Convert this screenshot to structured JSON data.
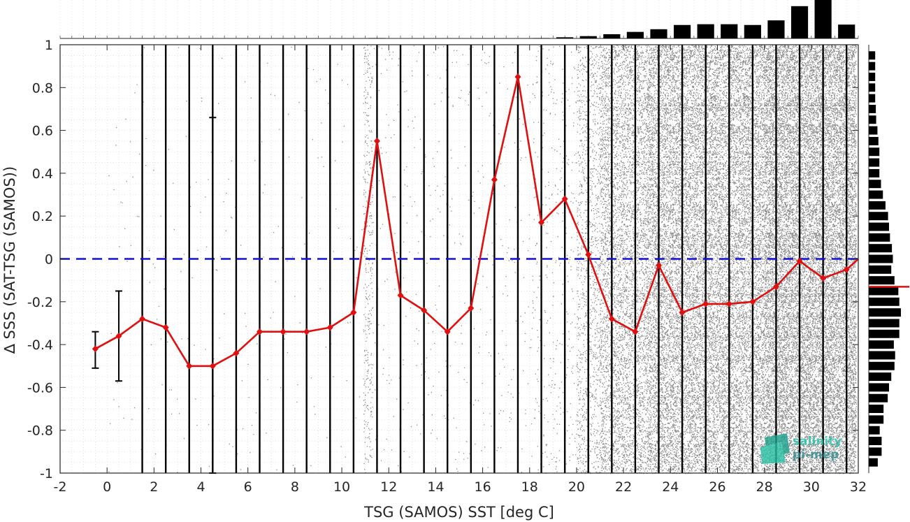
{
  "chart_data": {
    "type": "line",
    "title": "",
    "xlabel": "TSG (SAMOS) SST [deg C]",
    "ylabel": "∆ SSS (SAT-TSG (SAMOS))",
    "xlim": [
      -2,
      32
    ],
    "ylim": [
      -1,
      1
    ],
    "xticks": [
      -2,
      0,
      2,
      4,
      6,
      8,
      10,
      12,
      14,
      16,
      18,
      20,
      22,
      24,
      26,
      28,
      30,
      32
    ],
    "yticks": [
      -1,
      -0.8,
      -0.6,
      -0.4,
      -0.2,
      0,
      0.2,
      0.4,
      0.6,
      0.8,
      1
    ],
    "xtick_labels": [
      "-2",
      "0",
      "2",
      "4",
      "6",
      "8",
      "10",
      "12",
      "14",
      "16",
      "18",
      "20",
      "22",
      "24",
      "26",
      "28",
      "30",
      "32"
    ],
    "ytick_labels": [
      "-1",
      "-0.8",
      "-0.6",
      "-0.4",
      "-0.2",
      "0",
      "0.2",
      "0.4",
      "0.6",
      "0.8",
      "1"
    ],
    "grid": true,
    "reference_line": {
      "y": 0,
      "style": "dashed",
      "color": "#1010d8"
    },
    "series": [
      {
        "color": "#e01010",
        "marker": "diamond",
        "x": [
          -0.5,
          0.5,
          1.5,
          2.5,
          3.5,
          4.5,
          5.5,
          6.5,
          7.5,
          8.5,
          9.5,
          10.5,
          11.5,
          12.5,
          13.5,
          14.5,
          15.5,
          16.5,
          17.5,
          18.5,
          19.5,
          20.5,
          21.5,
          22.5,
          23.5,
          24.5,
          25.5,
          26.5,
          27.5,
          28.5,
          29.5,
          30.5,
          31.5
        ],
        "y": [
          -0.42,
          -0.36,
          -0.28,
          -0.32,
          -0.5,
          -0.5,
          -0.44,
          -0.34,
          -0.34,
          -0.34,
          -0.32,
          -0.25,
          0.55,
          -0.17,
          -0.24,
          -0.34,
          -0.23,
          0.37,
          0.85,
          0.17,
          0.28,
          0.02,
          -0.28,
          -0.34,
          -0.03,
          -0.25,
          -0.21,
          -0.21,
          -0.2,
          -0.13,
          -0.01,
          -0.09,
          -0.05
        ]
      }
    ],
    "error_bars": [
      {
        "x": -0.5,
        "low": -0.51,
        "high": -0.34
      },
      {
        "x": 0.5,
        "low": -0.57,
        "high": -0.15
      },
      {
        "x": 4.5,
        "low": -1.0,
        "high": 0.66
      }
    ],
    "bin_centers_with_vertical_lines": [
      1.5,
      2.5,
      3.5,
      4.5,
      5.5,
      6.5,
      7.5,
      8.5,
      9.5,
      10.5,
      11.5,
      12.5,
      13.5,
      14.5,
      15.5,
      16.5,
      17.5,
      18.5,
      19.5,
      20.5,
      21.5,
      22.5,
      23.5,
      24.5,
      25.5,
      26.5,
      27.5,
      28.5,
      29.5,
      30.5,
      31.5
    ],
    "top_histogram": {
      "bins": [
        -0.5,
        0.5,
        1.5,
        2.5,
        3.5,
        4.5,
        5.5,
        6.5,
        7.5,
        8.5,
        9.5,
        10.5,
        11.5,
        12.5,
        13.5,
        14.5,
        15.5,
        16.5,
        17.5,
        18.5,
        19.5,
        20.5,
        21.5,
        22.5,
        23.5,
        24.5,
        25.5,
        26.5,
        27.5,
        28.5,
        29.5,
        30.5,
        31.5
      ],
      "relative_counts": [
        0,
        0,
        0,
        0,
        0,
        0,
        0,
        0,
        0,
        0,
        0,
        0,
        0.01,
        0,
        0,
        0,
        0,
        0,
        0,
        0.01,
        0.03,
        0.06,
        0.11,
        0.17,
        0.24,
        0.35,
        0.37,
        0.37,
        0.35,
        0.47,
        0.84,
        1.0,
        0.36
      ]
    },
    "right_histogram": {
      "bins": [
        -0.95,
        -0.9,
        -0.85,
        -0.8,
        -0.75,
        -0.7,
        -0.65,
        -0.6,
        -0.55,
        -0.5,
        -0.45,
        -0.4,
        -0.35,
        -0.3,
        -0.25,
        -0.2,
        -0.15,
        -0.1,
        -0.05,
        0.0,
        0.05,
        0.1,
        0.15,
        0.2,
        0.25,
        0.3,
        0.35,
        0.4,
        0.45,
        0.5,
        0.55,
        0.6,
        0.65,
        0.7,
        0.75,
        0.8,
        0.85,
        0.9,
        0.95
      ],
      "relative_counts": [
        0.28,
        0.4,
        0.4,
        0.34,
        0.46,
        0.46,
        0.59,
        0.63,
        0.7,
        0.8,
        0.82,
        0.78,
        0.95,
        0.95,
        1.0,
        0.95,
        0.92,
        0.8,
        0.7,
        0.75,
        0.72,
        0.66,
        0.63,
        0.6,
        0.52,
        0.44,
        0.38,
        0.33,
        0.33,
        0.33,
        0.3,
        0.27,
        0.23,
        0.22,
        0.2,
        0.2,
        0.2,
        0.2,
        0.2
      ],
      "median_marker_y": -0.13
    },
    "scatter_cloud": {
      "color": "#8a8a8a",
      "description_density_by_sst": "dense above 20"
    },
    "colors": {
      "series": "#e01010",
      "reference": "#1010d8",
      "bars": "#000000",
      "scatter": "#8a8a8a",
      "grid": "#d0d0d0",
      "logo": "#20b8a0"
    }
  },
  "logo": {
    "line1": "salinity",
    "line2": "pi-mep"
  }
}
